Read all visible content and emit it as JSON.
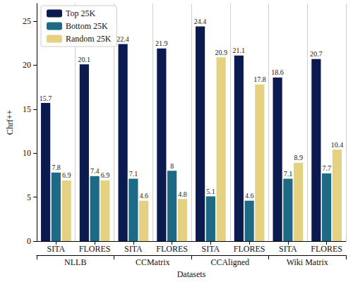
{
  "chart_data": {
    "type": "bar",
    "x_label": "Datasets",
    "y_label": "Chrf++",
    "categories": [
      "SITA",
      "FLORES",
      "SITA",
      "FLORES",
      "SITA",
      "FLORES",
      "SITA",
      "FLORES"
    ],
    "groups": [
      "NLLB",
      "CCMatrix",
      "CCAligned",
      "Wiki Matrix"
    ],
    "series": [
      {
        "name": "Top 25K",
        "color": "#0b1a4f",
        "values": [
          15.7,
          20.1,
          22.4,
          21.9,
          24.4,
          21.1,
          18.6,
          20.7
        ]
      },
      {
        "name": "Bottom 25K",
        "color": "#1d6a86",
        "values": [
          7.8,
          7.4,
          7.1,
          8.0,
          5.1,
          4.6,
          7.1,
          7.7
        ]
      },
      {
        "name": "Random 25K",
        "color": "#e5d182",
        "values": [
          6.9,
          6.9,
          4.6,
          4.8,
          20.9,
          17.8,
          8.9,
          10.4
        ]
      }
    ],
    "ylim": [
      0,
      27
    ],
    "yticks": [
      0,
      5,
      10,
      15,
      20,
      25
    ],
    "grid": true,
    "legend": "upper left",
    "data_labels": true
  }
}
